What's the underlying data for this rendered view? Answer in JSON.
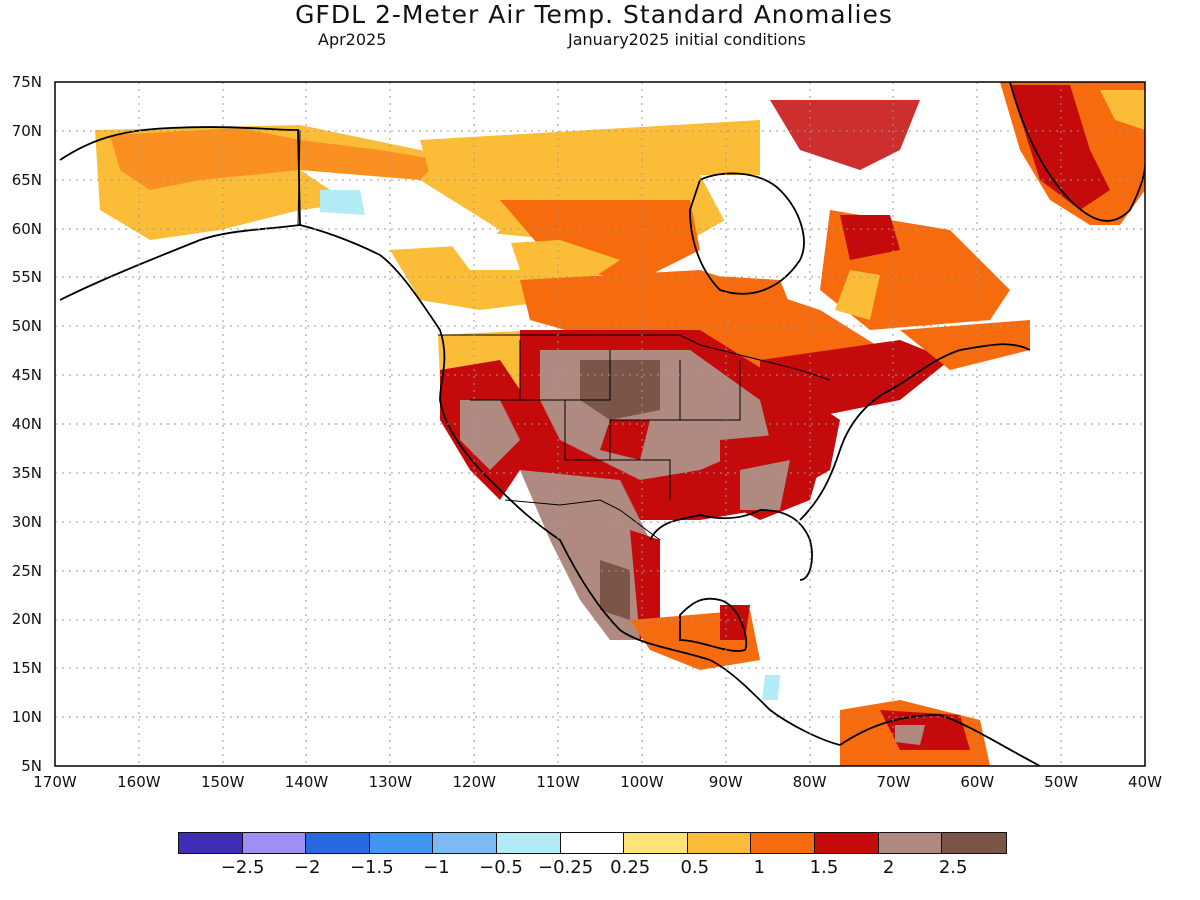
{
  "header": {
    "title": "GFDL 2-Meter Air Temp. Standard Anomalies",
    "valid_month": "Apr2025",
    "init": "January2025 initial conditions"
  },
  "axes": {
    "lat_labels": [
      "75N",
      "70N",
      "65N",
      "60N",
      "55N",
      "50N",
      "45N",
      "40N",
      "35N",
      "30N",
      "25N",
      "20N",
      "15N",
      "10N",
      "5N"
    ],
    "lon_labels": [
      "170W",
      "160W",
      "150W",
      "140W",
      "130W",
      "120W",
      "110W",
      "100W",
      "90W",
      "80W",
      "70W",
      "60W",
      "50W",
      "40W"
    ],
    "lat_range": [
      5,
      75
    ],
    "lon_range": [
      -170,
      -40
    ]
  },
  "colorbar": {
    "colors": [
      "#3f2fb8",
      "#a08ef5",
      "#2868e0",
      "#3f95f0",
      "#7dbaf2",
      "#b3ecf7",
      "#ffffff",
      "#ffe27a",
      "#fbbd38",
      "#f76b0f",
      "#c40a0a",
      "#b08a80",
      "#7a5548"
    ],
    "labels": [
      "-2.5",
      "-2",
      "-1.5",
      "-1",
      "-0.5",
      "-0.25",
      "0.25",
      "0.5",
      "1",
      "1.5",
      "2",
      "2.5"
    ]
  },
  "regions": [
    {
      "name": "alaska",
      "anomaly": 0.75
    },
    {
      "name": "yukon",
      "anomaly": 0.25
    },
    {
      "name": "canada-prairies",
      "anomaly": 1.25
    },
    {
      "name": "hudson-bay-west",
      "anomaly": 0.75
    },
    {
      "name": "baffin",
      "anomaly": 1.75
    },
    {
      "name": "greenland",
      "anomaly": 1.5
    },
    {
      "name": "us-central",
      "anomaly": 2.25
    },
    {
      "name": "us-north-plains",
      "anomaly": 2.75
    },
    {
      "name": "us-east",
      "anomaly": 1.75
    },
    {
      "name": "mexico",
      "anomaly": 2.25
    },
    {
      "name": "caribbean-sa",
      "anomaly": 1.75
    }
  ]
}
